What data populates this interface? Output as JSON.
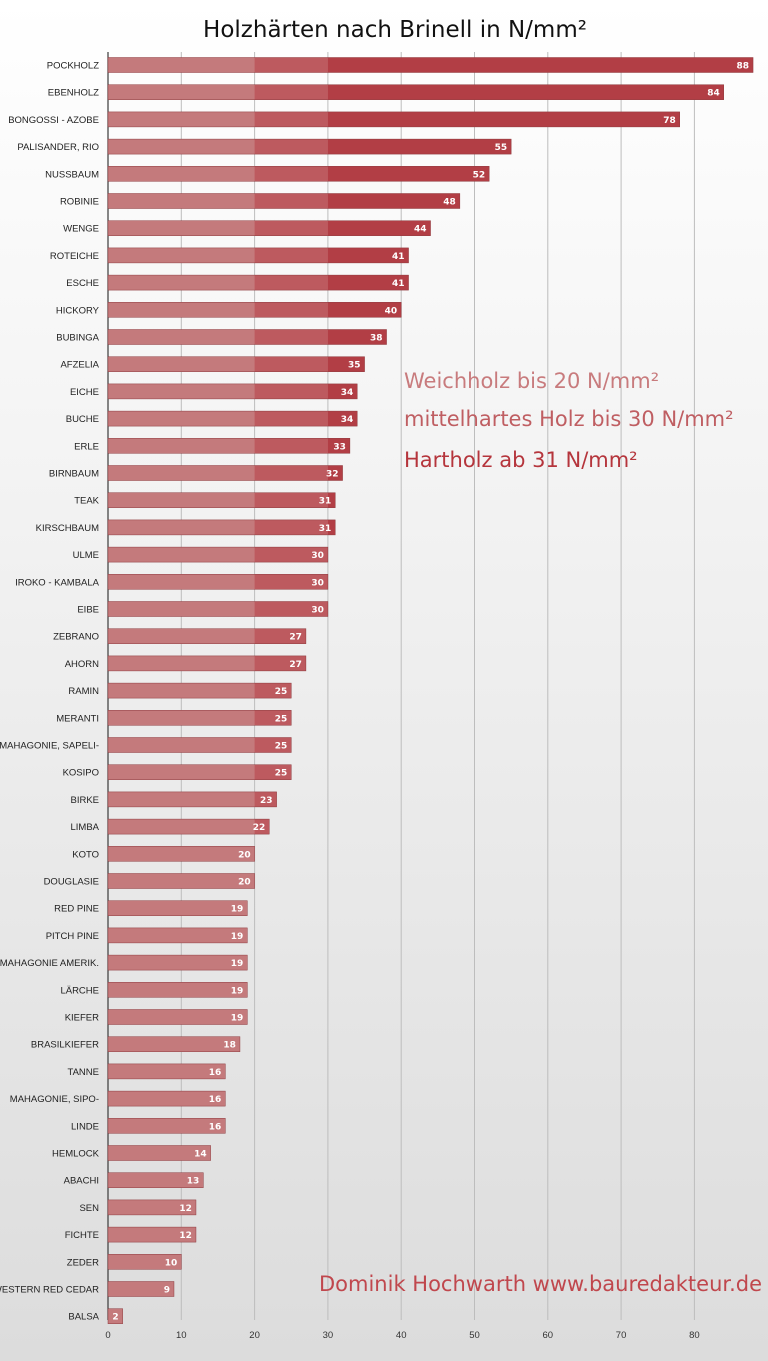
{
  "chart_data": {
    "type": "bar",
    "orientation": "horizontal",
    "title": "Holzhärten nach Brinell in N/mm²",
    "xlabel": "",
    "ylabel": "",
    "xlim": [
      0,
      88
    ],
    "x_ticks": [
      0,
      10,
      20,
      30,
      40,
      50,
      60,
      70,
      80
    ],
    "grid": "vertical",
    "categories": [
      "POCKHOLZ",
      "EBENHOLZ",
      "BONGOSSI - AZOBE",
      "PALISANDER, RIO",
      "NUSSBAUM",
      "ROBINIE",
      "WENGE",
      "ROTEICHE",
      "ESCHE",
      "HICKORY",
      "BUBINGA",
      "AFZELIA",
      "EICHE",
      "BUCHE",
      "ERLE",
      "BIRNBAUM",
      "TEAK",
      "KIRSCHBAUM",
      "ULME",
      "IROKO - KAMBALA",
      "EIBE",
      "ZEBRANO",
      "AHORN",
      "RAMIN",
      "MERANTI",
      "MAHAGONIE, SAPELI-",
      "KOSIPO",
      "BIRKE",
      "LIMBA",
      "KOTO",
      "DOUGLASIE",
      "RED PINE",
      "PITCH PINE",
      "MAHAGONIE AMERIK.",
      "LÄRCHE",
      "KIEFER",
      "BRASILKIEFER",
      "TANNE",
      "MAHAGONIE, SIPO-",
      "LINDE",
      "HEMLOCK",
      "ABACHI",
      "SEN",
      "FICHTE",
      "ZEDER",
      "WESTERN RED CEDAR",
      "BALSA"
    ],
    "values": [
      88,
      84,
      78,
      55,
      52,
      48,
      44,
      41,
      41,
      40,
      38,
      35,
      34,
      34,
      33,
      32,
      31,
      31,
      30,
      30,
      30,
      27,
      27,
      25,
      25,
      25,
      25,
      23,
      22,
      20,
      20,
      19,
      19,
      19,
      19,
      19,
      18,
      16,
      16,
      16,
      14,
      13,
      12,
      12,
      10,
      9,
      2
    ],
    "segment_colors": {
      "weich": "#c47a7c",
      "mittel": "#bd5a5f",
      "hart": "#b23e45"
    },
    "annotations": [
      "Weichholz bis 20 N/mm²",
      "mittelhartes Holz bis 30 N/mm²",
      "Hartholz ab 31 N/mm²"
    ],
    "annotation_colors": [
      "#c87b7d",
      "#bf5e62",
      "#b5353c"
    ]
  },
  "credit": "Dominik Hochwarth www.bauredakteur.de",
  "credit_color": "#c0474d"
}
